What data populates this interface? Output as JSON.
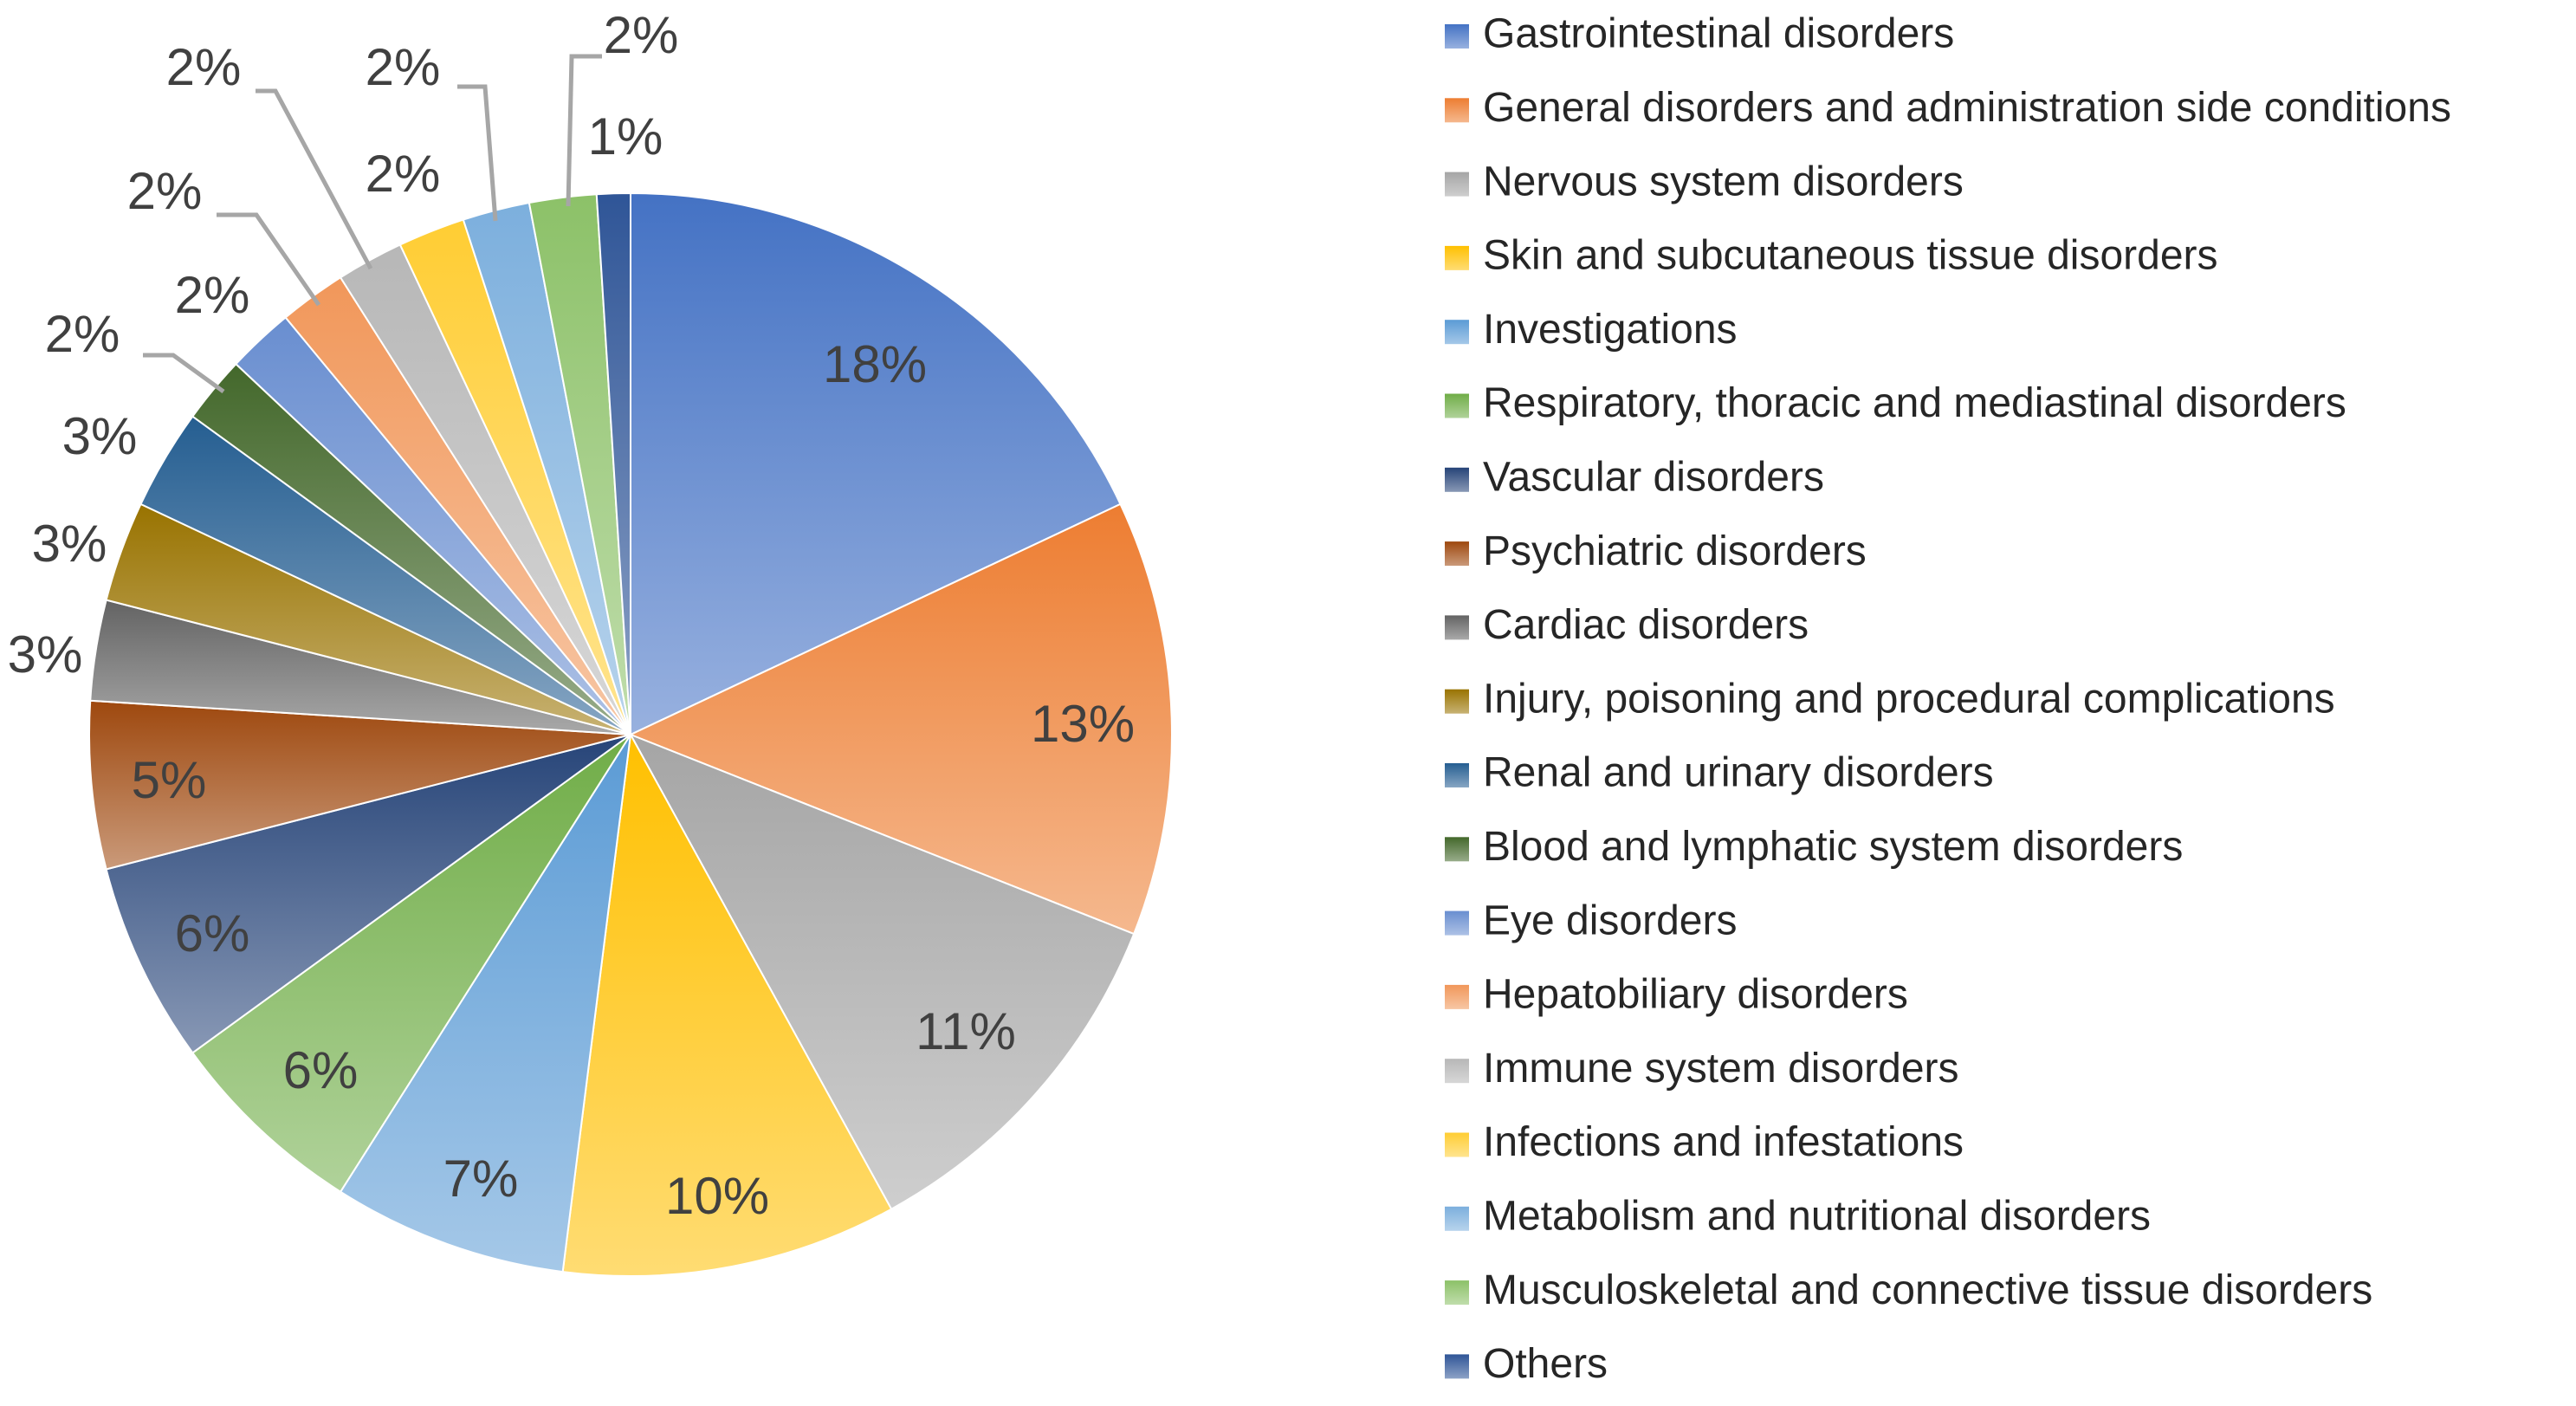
{
  "chart_data": {
    "type": "pie",
    "title": "",
    "legend_position": "right",
    "slices": [
      {
        "label": "Gastrointestinal disorders",
        "value": 18,
        "display": "18%",
        "color": "#4472c4"
      },
      {
        "label": "General disorders and administration side conditions",
        "value": 13,
        "display": "13%",
        "color": "#ed7d31"
      },
      {
        "label": "Nervous system disorders",
        "value": 11,
        "display": "11%",
        "color": "#a5a5a5"
      },
      {
        "label": "Skin and subcutaneous tissue disorders",
        "value": 10,
        "display": "10%",
        "color": "#ffc000"
      },
      {
        "label": "Investigations",
        "value": 7,
        "display": "7%",
        "color": "#5b9bd5"
      },
      {
        "label": "Respiratory,  thoracic and mediastinal disorders",
        "value": 6,
        "display": "6%",
        "color": "#70ad47"
      },
      {
        "label": "Vascular disorders",
        "value": 6,
        "display": "6%",
        "color": "#264478"
      },
      {
        "label": "Psychiatric disorders",
        "value": 5,
        "display": "5%",
        "color": "#9e480e"
      },
      {
        "label": "Cardiac disorders",
        "value": 3,
        "display": "3%",
        "color": "#636363"
      },
      {
        "label": "Injury, poisoning and procedural complications",
        "value": 3,
        "display": "3%",
        "color": "#997300"
      },
      {
        "label": "Renal and urinary disorders",
        "value": 3,
        "display": "3%",
        "color": "#255e91"
      },
      {
        "label": "Blood and lymphatic system disorders",
        "value": 2,
        "display": "2%",
        "color": "#43682b"
      },
      {
        "label": "Eye disorders",
        "value": 2,
        "display": "2%",
        "color": "#698ed0"
      },
      {
        "label": "Hepatobiliary disorders",
        "value": 2,
        "display": "2%",
        "color": "#f1975a"
      },
      {
        "label": "Immune system disorders",
        "value": 2,
        "display": "2%",
        "color": "#b7b7b7"
      },
      {
        "label": "Infections and infestations",
        "value": 2,
        "display": "2%",
        "color": "#ffcd33"
      },
      {
        "label": "Metabolism and nutritional disorders",
        "value": 2,
        "display": "2%",
        "color": "#7cafdd"
      },
      {
        "label": "Musculoskeletal  and connective tissue disorders",
        "value": 2,
        "display": "2%",
        "color": "#8cc168"
      },
      {
        "label": "Others",
        "value": 1,
        "display": "1%",
        "color": "#2f5597"
      }
    ]
  }
}
